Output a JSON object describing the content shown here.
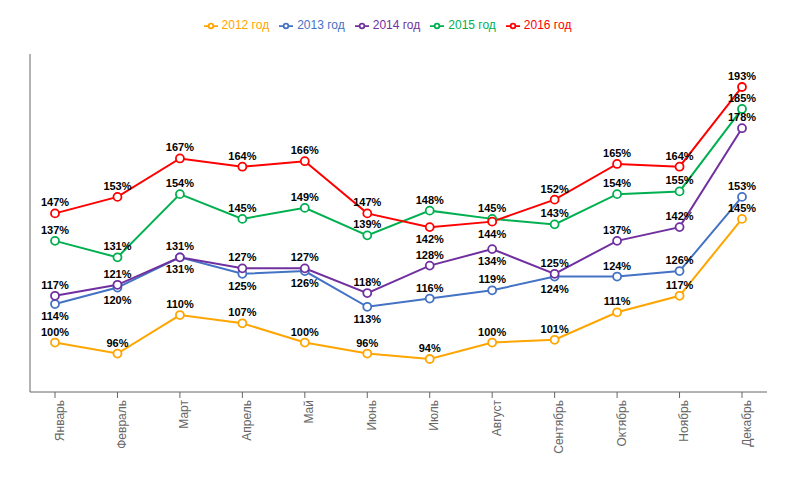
{
  "chart_data": {
    "type": "line",
    "categories": [
      "Январь",
      "Февраль",
      "Март",
      "Апрель",
      "Май",
      "Июнь",
      "Июль",
      "Август",
      "Сентябрь",
      "Октябрь",
      "Ноябрь",
      "Декабрь"
    ],
    "series": [
      {
        "name": "2012 год",
        "color": "#FFA500",
        "values": [
          100,
          96,
          110,
          107,
          100,
          96,
          94,
          100,
          101,
          111,
          117,
          145
        ],
        "value_labels": [
          "100%",
          "96%",
          "110%",
          "107%",
          "100%",
          "96%",
          "94%",
          "100%",
          "101%",
          "111%",
          "117%",
          "145%"
        ]
      },
      {
        "name": "2013 год",
        "color": "#4472C4",
        "values": [
          114,
          120,
          131,
          125,
          126,
          113,
          116,
          119,
          124,
          124,
          126,
          153
        ],
        "value_labels": [
          "114%",
          "120%",
          "131%",
          "125%",
          "126%",
          "113%",
          "116%",
          "119%",
          "124%",
          "124%",
          "126%",
          "153%"
        ]
      },
      {
        "name": "2014 год",
        "color": "#7030A0",
        "values": [
          117,
          121,
          131,
          127,
          127,
          118,
          128,
          134,
          125,
          137,
          142,
          178
        ],
        "value_labels": [
          "117%",
          "121%",
          "131%",
          "127%",
          "127%",
          "118%",
          "128%",
          "134%",
          "125%",
          "137%",
          "142%",
          "178%"
        ]
      },
      {
        "name": "2015 год",
        "color": "#00B050",
        "values": [
          137,
          131,
          154,
          145,
          149,
          139,
          148,
          145,
          143,
          154,
          155,
          185
        ],
        "value_labels": [
          "137%",
          "131%",
          "154%",
          "145%",
          "149%",
          "139%",
          "148%",
          "145%",
          "143%",
          "154%",
          "155%",
          "185%"
        ]
      },
      {
        "name": "2016 год",
        "color": "#FF0000",
        "values": [
          147,
          153,
          167,
          164,
          166,
          147,
          142,
          144,
          152,
          165,
          164,
          193
        ],
        "value_labels": [
          "147%",
          "153%",
          "167%",
          "164%",
          "166%",
          "147%",
          "142%",
          "144%",
          "152%",
          "165%",
          "164%",
          "193%"
        ]
      }
    ],
    "ylim": [
      82,
      205
    ],
    "marker": "circle",
    "data_labels": true,
    "tick_labels": "x",
    "grid": false,
    "legend": "top"
  }
}
